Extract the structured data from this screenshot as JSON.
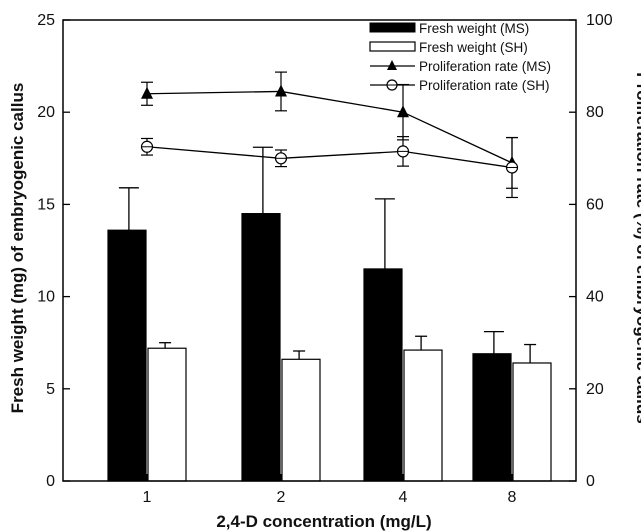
{
  "chart_data": {
    "type": "bar",
    "xlabel": "2,4-D concentration (mg/L)",
    "ylabel": "Fresh weight (mg) of embryogenic callus",
    "y2label": "Proliferation rate (%) of embryogenic callus",
    "categories": [
      "1",
      "2",
      "4",
      "8"
    ],
    "ylim": [
      0,
      25
    ],
    "yticks": [
      "0",
      "5",
      "10",
      "15",
      "20",
      "25"
    ],
    "y2lim": [
      0,
      100
    ],
    "y2ticks": [
      "0",
      "20",
      "40",
      "60",
      "80",
      "100"
    ],
    "legend_position": "top-right",
    "grid": false,
    "series": [
      {
        "name": "Fresh weight (MS)",
        "kind": "bar",
        "axis": "left",
        "fill": "#000000",
        "values": [
          13.6,
          14.5,
          11.5,
          6.9
        ],
        "errors": [
          2.3,
          3.6,
          3.8,
          1.2
        ]
      },
      {
        "name": "Fresh weight (SH)",
        "kind": "bar",
        "axis": "left",
        "fill": "#ffffff",
        "values": [
          7.2,
          6.6,
          7.1,
          6.4
        ],
        "errors": [
          0.3,
          0.45,
          0.75,
          1.0
        ]
      },
      {
        "name": "Proliferation rate (MS)",
        "kind": "line",
        "axis": "right",
        "marker": "triangle",
        "values": [
          84,
          84.5,
          80,
          69
        ],
        "errors": [
          2.5,
          4.2,
          6.0,
          5.5
        ]
      },
      {
        "name": "Proliferation rate (SH)",
        "kind": "line",
        "axis": "right",
        "marker": "circle",
        "values": [
          72.5,
          70,
          71.5,
          68
        ],
        "errors": [
          1.8,
          1.8,
          3.2,
          6.5
        ]
      }
    ]
  }
}
